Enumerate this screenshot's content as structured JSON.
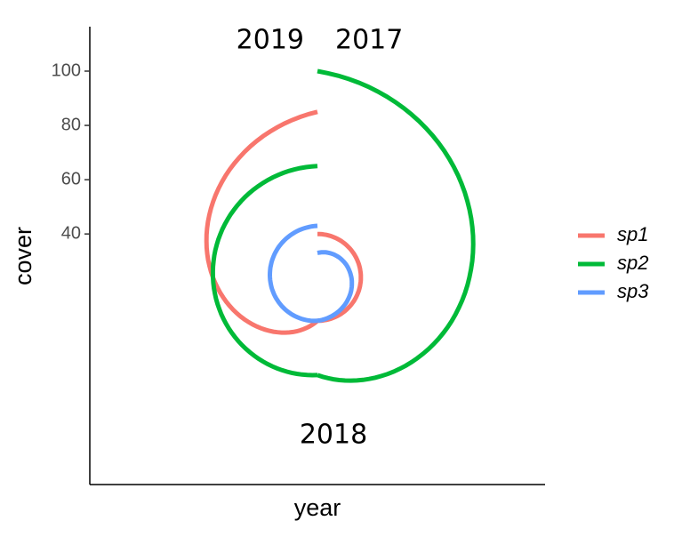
{
  "chart_data": {
    "type": "polar-line",
    "x_label": "year",
    "y_label": "cover",
    "x": [
      2017,
      2018,
      2019
    ],
    "xlim": [
      2017,
      2019
    ],
    "xticks": [
      2017,
      2018,
      2019
    ],
    "ylim": [
      24,
      100
    ],
    "yticks": [
      40,
      60,
      80,
      100
    ],
    "series": [
      {
        "name": "sp1",
        "color": "#F8766D",
        "values": [
          40,
          40,
          85
        ]
      },
      {
        "name": "sp2",
        "color": "#00BA38",
        "values": [
          100,
          60,
          65
        ]
      },
      {
        "name": "sp3",
        "color": "#619CFF",
        "values": [
          33,
          40,
          43
        ]
      }
    ]
  }
}
